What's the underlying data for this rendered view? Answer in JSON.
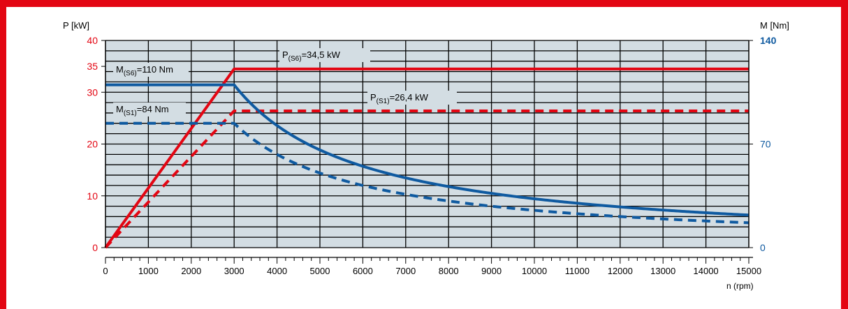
{
  "chart_data": {
    "type": "line",
    "left_axis_label": "P [kW]",
    "right_axis_label": "M [Nm]",
    "xlabel": "n (rpm)",
    "xlim": [
      0,
      15000
    ],
    "left_ylim": [
      0,
      40
    ],
    "right_ylim": [
      0,
      140
    ],
    "x_ticks": [
      "0",
      "1000",
      "2000",
      "3000",
      "4000",
      "5000",
      "6000",
      "7000",
      "8000",
      "9000",
      "10000",
      "11000",
      "12000",
      "13000",
      "14000",
      "15000"
    ],
    "left_ticks": [
      {
        "value": 0,
        "label": "0"
      },
      {
        "value": 10,
        "label": "10"
      },
      {
        "value": 20,
        "label": "20"
      },
      {
        "value": 30,
        "label": "30"
      },
      {
        "value": 35,
        "label": "35"
      },
      {
        "value": 40,
        "label": "40"
      }
    ],
    "right_ticks": [
      {
        "value": 0,
        "label": "0",
        "bold": false
      },
      {
        "value": 70,
        "label": "70",
        "bold": false
      },
      {
        "value": 140,
        "label": "140",
        "bold": true
      }
    ],
    "colors": {
      "power": "#e30613",
      "torque": "#0f5aa0",
      "plot_bg": "#d3dde3",
      "frame": "#e30613",
      "left_axis_text": "#e30613",
      "right_axis_text": "#0f5aa0"
    },
    "series": [
      {
        "name": "P(S6)",
        "axis": "left",
        "style": "solid",
        "color": "#e30613",
        "x": [
          0,
          3000,
          15000
        ],
        "y": [
          0,
          34.5,
          34.5
        ]
      },
      {
        "name": "P(S1)",
        "axis": "left",
        "style": "dashed",
        "color": "#e30613",
        "x": [
          0,
          3000,
          15000
        ],
        "y": [
          0,
          26.4,
          26.4
        ]
      },
      {
        "name": "M(S6)",
        "axis": "right",
        "style": "solid",
        "color": "#0f5aa0",
        "x": [
          0,
          3000,
          3500,
          4000,
          5000,
          6000,
          7000,
          8000,
          9000,
          10000,
          11000,
          12000,
          13000,
          14000,
          15000
        ],
        "y": [
          110,
          110,
          94.3,
          82.5,
          66,
          55,
          47.1,
          41.3,
          36.7,
          33,
          30,
          27.5,
          25.4,
          23.6,
          22
        ]
      },
      {
        "name": "M(S1)",
        "axis": "right",
        "style": "dashed",
        "color": "#0f5aa0",
        "x": [
          0,
          3000,
          3500,
          4000,
          5000,
          6000,
          7000,
          8000,
          9000,
          10000,
          11000,
          12000,
          13000,
          14000,
          15000
        ],
        "y": [
          84,
          84,
          72,
          63,
          50.4,
          42,
          36,
          31.5,
          28,
          25.2,
          22.9,
          21,
          19.4,
          18,
          16.8
        ]
      }
    ],
    "annotations": [
      {
        "id": "ann-p-s6",
        "main": "P",
        "sub": "(S6)",
        "rest": "=34,5 kW"
      },
      {
        "id": "ann-m-s6",
        "main": "M",
        "sub": "(S6)",
        "rest": "=110 Nm"
      },
      {
        "id": "ann-p-s1",
        "main": "P",
        "sub": "(S1)",
        "rest": "=26,4 kW"
      },
      {
        "id": "ann-m-s1",
        "main": "M",
        "sub": "(S1)",
        "rest": "=84 Nm"
      }
    ]
  }
}
